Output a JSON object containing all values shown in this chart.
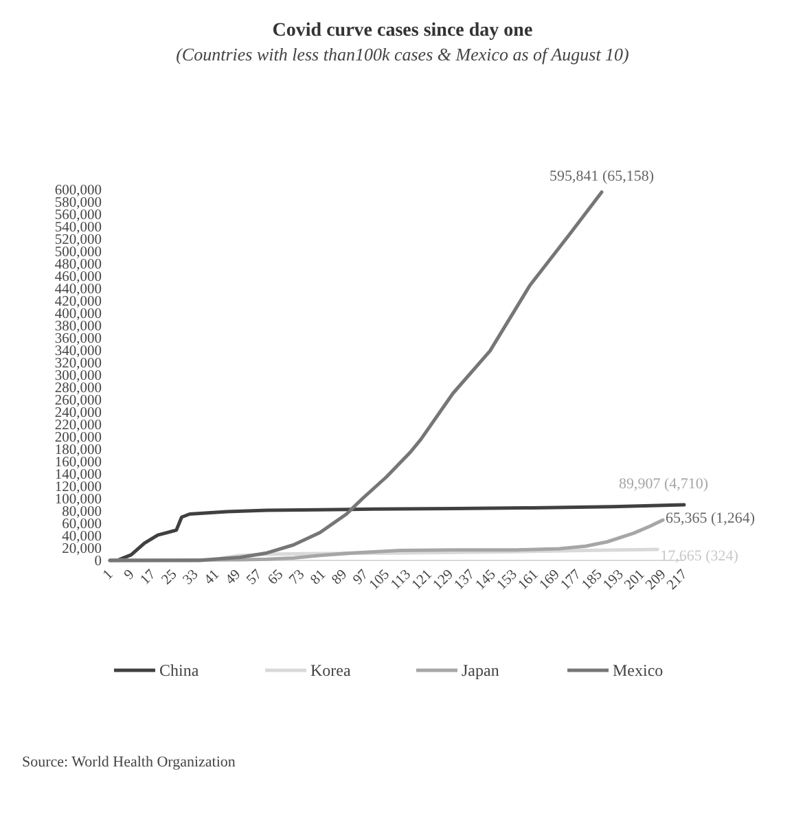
{
  "chart_data": {
    "type": "line",
    "title": "Covid curve cases since day one",
    "subtitle": "(Countries with less than100k cases & Mexico as of August 10)",
    "xlim": [
      1,
      217
    ],
    "xticks": [
      1,
      9,
      17,
      25,
      33,
      41,
      49,
      57,
      65,
      73,
      81,
      89,
      97,
      105,
      113,
      121,
      129,
      137,
      145,
      153,
      161,
      169,
      177,
      185,
      193,
      201,
      209,
      217
    ],
    "ylim": [
      0,
      600000
    ],
    "yticks": [
      {
        "value": 0,
        "label": "0"
      },
      {
        "value": 20000,
        "label": "20,000"
      },
      {
        "value": 40000,
        "label": "40,000"
      },
      {
        "value": 60000,
        "label": "60,000"
      },
      {
        "value": 80000,
        "label": "80,000"
      },
      {
        "value": 100000,
        "label": "100,000"
      },
      {
        "value": 120000,
        "label": "120,000"
      },
      {
        "value": 140000,
        "label": "140,000"
      },
      {
        "value": 160000,
        "label": "160,000"
      },
      {
        "value": 180000,
        "label": "180,000"
      },
      {
        "value": 200000,
        "label": "200,000"
      },
      {
        "value": 220000,
        "label": "220,000"
      },
      {
        "value": 240000,
        "label": "240,000"
      },
      {
        "value": 260000,
        "label": "260,000"
      },
      {
        "value": 280000,
        "label": "280,000"
      },
      {
        "value": 300000,
        "label": "300,000"
      },
      {
        "value": 320000,
        "label": "320,000"
      },
      {
        "value": 340000,
        "label": "340,000"
      },
      {
        "value": 360000,
        "label": "360,000"
      },
      {
        "value": 380000,
        "label": "380,000"
      },
      {
        "value": 400000,
        "label": "400,000"
      },
      {
        "value": 420000,
        "label": "420,000"
      },
      {
        "value": 440000,
        "label": "440,000"
      },
      {
        "value": 460000,
        "label": "460,000"
      },
      {
        "value": 480000,
        "label": "480,000"
      },
      {
        "value": 500000,
        "label": "500,000"
      },
      {
        "value": 520000,
        "label": "520,000"
      },
      {
        "value": 540000,
        "label": "540,000"
      },
      {
        "value": 560000,
        "label": "560,000"
      },
      {
        "value": 580000,
        "label": "580,000"
      },
      {
        "value": 600000,
        "label": "600,000"
      }
    ],
    "grid": false,
    "legend": "bottom",
    "marker": "none",
    "line_style": "solid",
    "series": [
      {
        "name": "China",
        "color": "#404040",
        "x": [
          1,
          4,
          9,
          14,
          19,
          26,
          28,
          31,
          45,
          60,
          80,
          100,
          130,
          160,
          190,
          217
        ],
        "values": [
          0,
          500,
          9000,
          28000,
          41000,
          49000,
          70000,
          75000,
          79000,
          81000,
          82000,
          83000,
          84000,
          85000,
          87000,
          89907
        ]
      },
      {
        "name": "Korea",
        "color": "#d9d9d9",
        "x": [
          1,
          30,
          40,
          45,
          50,
          60,
          80,
          110,
          150,
          180,
          207
        ],
        "values": [
          0,
          0,
          1000,
          5000,
          8000,
          10000,
          11000,
          12000,
          14000,
          16000,
          17665
        ]
      },
      {
        "name": "Japan",
        "color": "#a6a6a6",
        "x": [
          1,
          50,
          60,
          70,
          80,
          92,
          110,
          130,
          154,
          170,
          180,
          188,
          198,
          204,
          209
        ],
        "values": [
          0,
          1000,
          2000,
          4000,
          8000,
          12000,
          16000,
          17000,
          17000,
          19000,
          23000,
          30000,
          44000,
          55000,
          65365
        ]
      },
      {
        "name": "Mexico",
        "color": "#767676",
        "x": [
          1,
          35,
          40,
          50,
          60,
          70,
          80,
          90,
          96,
          105,
          114,
          118,
          130,
          144,
          159,
          174,
          186
        ],
        "values": [
          0,
          0,
          2000,
          5000,
          12000,
          25000,
          45000,
          75000,
          100000,
          135000,
          175000,
          196000,
          270000,
          339000,
          445000,
          528000,
          595841
        ]
      }
    ],
    "annotations": [
      {
        "text": "595,841 (65,158)",
        "x": 186,
        "y": 595841
      },
      {
        "text": "89,907 (4,710)",
        "x": 217,
        "y": 89907
      },
      {
        "text": "65,365 (1,264)",
        "x": 209,
        "y": 65365
      },
      {
        "text": "17,665 (324)",
        "x": 207,
        "y": 17665
      },
      "Source: World Health Organization"
    ]
  }
}
